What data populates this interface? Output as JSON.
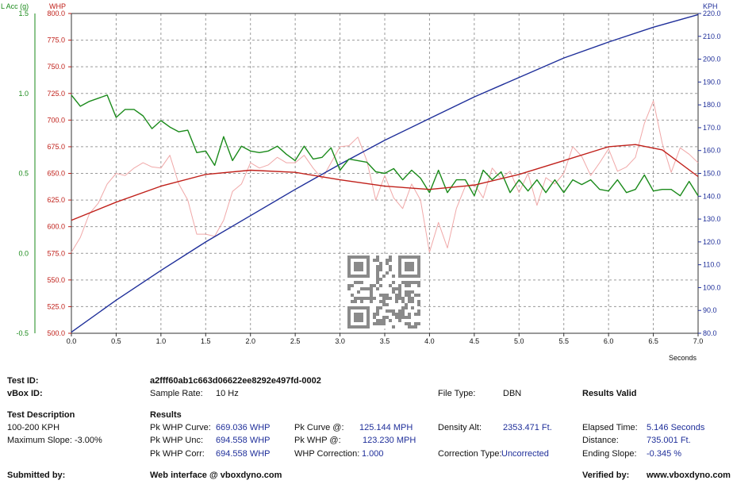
{
  "chart_data": {
    "type": "line",
    "xlabel": "Seconds",
    "x_ticks": [
      0.0,
      0.5,
      1.0,
      1.5,
      2.0,
      2.5,
      3.0,
      3.5,
      4.0,
      4.5,
      5.0,
      5.5,
      6.0,
      6.5,
      7.0
    ],
    "xlim": [
      0,
      7
    ],
    "axes": {
      "acc": {
        "label": "L Acc (g)",
        "ticks": [
          -0.5,
          0.0,
          0.5,
          1.0,
          1.5
        ],
        "lim": [
          -0.5,
          1.5
        ],
        "color": "#1a8a1a"
      },
      "whp": {
        "label": "WHP",
        "ticks": [
          500.0,
          525.0,
          550.0,
          575.0,
          600.0,
          625.0,
          650.0,
          675.0,
          700.0,
          725.0,
          750.0,
          775.0,
          800.0
        ],
        "lim": [
          500,
          800
        ],
        "color": "#c0201a"
      },
      "kph": {
        "label": "KPH",
        "ticks": [
          80.0,
          90.0,
          100.0,
          110.0,
          120.0,
          130.0,
          140.0,
          150.0,
          160.0,
          170.0,
          180.0,
          190.0,
          200.0,
          210.0,
          220.0
        ],
        "lim": [
          80,
          220
        ],
        "color": "#1f2f9a"
      }
    },
    "series": [
      {
        "axis": "kph",
        "color": "#1f2f9a",
        "x": [
          0,
          0.5,
          1.0,
          1.5,
          2.0,
          2.5,
          3.0,
          3.5,
          4.0,
          4.5,
          5.0,
          5.5,
          6.0,
          6.5,
          7.0
        ],
        "values": [
          80.5,
          94.5,
          107.5,
          120.0,
          131.5,
          143.0,
          154.0,
          164.5,
          174.0,
          183.5,
          192.0,
          200.5,
          207.5,
          214.0,
          219.5
        ]
      },
      {
        "axis": "whp",
        "color": "#c0201a",
        "x": [
          0,
          0.5,
          1.0,
          1.5,
          2.0,
          2.5,
          3.0,
          3.5,
          4.0,
          4.5,
          5.0,
          5.5,
          6.0,
          6.3,
          6.6,
          7.0
        ],
        "values": [
          606,
          623,
          638,
          649,
          653,
          651,
          644,
          638,
          635,
          639,
          649,
          662,
          675,
          677,
          672,
          647
        ]
      },
      {
        "axis": "whp",
        "color": "#f0a8a8",
        "x": [
          0,
          0.1,
          0.2,
          0.3,
          0.4,
          0.5,
          0.6,
          0.7,
          0.8,
          0.9,
          1.0,
          1.1,
          1.2,
          1.3,
          1.4,
          1.5,
          1.6,
          1.7,
          1.8,
          1.9,
          2.0,
          2.1,
          2.2,
          2.3,
          2.4,
          2.5,
          2.6,
          2.7,
          2.8,
          2.9,
          3.0,
          3.1,
          3.2,
          3.3,
          3.4,
          3.5,
          3.6,
          3.7,
          3.8,
          3.9,
          4.0,
          4.1,
          4.2,
          4.3,
          4.4,
          4.5,
          4.6,
          4.7,
          4.8,
          4.9,
          5.0,
          5.1,
          5.2,
          5.3,
          5.4,
          5.5,
          5.6,
          5.7,
          5.8,
          5.9,
          6.0,
          6.1,
          6.2,
          6.3,
          6.4,
          6.5,
          6.6,
          6.7,
          6.8,
          6.9,
          7.0
        ],
        "values": [
          576,
          590,
          612,
          622,
          640,
          650,
          648,
          655,
          660,
          656,
          655,
          667,
          640,
          625,
          593,
          593,
          591,
          606,
          633,
          640,
          660,
          655,
          658,
          665,
          660,
          660,
          667,
          655,
          645,
          660,
          675,
          676,
          684,
          662,
          625,
          648,
          627,
          617,
          640,
          625,
          576,
          604,
          580,
          617,
          638,
          640,
          627,
          655,
          645,
          652,
          632,
          650,
          620,
          646,
          640,
          650,
          675,
          666,
          648,
          660,
          673,
          652,
          656,
          665,
          697,
          718,
          678,
          651,
          674,
          668,
          660
        ]
      },
      {
        "axis": "acc",
        "color": "#1a8a1a",
        "x": [
          0,
          0.1,
          0.2,
          0.3,
          0.4,
          0.5,
          0.6,
          0.7,
          0.8,
          0.9,
          1.0,
          1.1,
          1.2,
          1.3,
          1.4,
          1.5,
          1.6,
          1.7,
          1.8,
          1.9,
          2.0,
          2.1,
          2.2,
          2.3,
          2.4,
          2.5,
          2.6,
          2.7,
          2.8,
          2.9,
          3.0,
          3.1,
          3.2,
          3.3,
          3.4,
          3.5,
          3.6,
          3.7,
          3.8,
          3.9,
          4.0,
          4.1,
          4.2,
          4.3,
          4.4,
          4.5,
          4.6,
          4.7,
          4.8,
          4.9,
          5.0,
          5.1,
          5.2,
          5.3,
          5.4,
          5.5,
          5.6,
          5.7,
          5.8,
          5.9,
          6.0,
          6.1,
          6.2,
          6.3,
          6.4,
          6.5,
          6.6,
          6.7,
          6.8,
          6.9,
          7.0
        ],
        "values": [
          0.99,
          0.92,
          0.95,
          0.97,
          0.99,
          0.85,
          0.9,
          0.9,
          0.86,
          0.78,
          0.83,
          0.79,
          0.76,
          0.77,
          0.63,
          0.64,
          0.55,
          0.73,
          0.58,
          0.67,
          0.64,
          0.63,
          0.64,
          0.67,
          0.62,
          0.58,
          0.67,
          0.59,
          0.6,
          0.66,
          0.52,
          0.59,
          0.58,
          0.57,
          0.51,
          0.5,
          0.53,
          0.46,
          0.52,
          0.47,
          0.38,
          0.52,
          0.38,
          0.46,
          0.46,
          0.36,
          0.52,
          0.46,
          0.51,
          0.38,
          0.46,
          0.39,
          0.46,
          0.38,
          0.46,
          0.38,
          0.46,
          0.43,
          0.46,
          0.4,
          0.39,
          0.46,
          0.38,
          0.4,
          0.49,
          0.39,
          0.4,
          0.4,
          0.36,
          0.45,
          0.36
        ]
      }
    ]
  },
  "qr_label": "QR code",
  "info": {
    "test_id_label": "Test ID:",
    "test_id": "a2fff60ab1c663d06622ee8292e497fd-0002",
    "vbox_id_label": "vBox ID:",
    "sample_rate_label": "Sample Rate:",
    "sample_rate": "10 Hz",
    "file_type_label": "File Type:",
    "file_type": "DBN",
    "results_valid": "Results Valid",
    "test_desc_label": "Test Description",
    "test_desc": "100-200 KPH",
    "max_slope": "Maximum Slope: -3.00%",
    "results_label": "Results",
    "pk_whp_curve_label": "Pk WHP Curve:",
    "pk_whp_curve": "669.036 WHP",
    "pk_whp_unc_label": "Pk WHP Unc:",
    "pk_whp_unc": "694.558 WHP",
    "pk_whp_corr_label": "Pk WHP Corr:",
    "pk_whp_corr": "694.558 WHP",
    "pk_curve_at_label": "Pk Curve @:",
    "pk_curve_at": "125.144 MPH",
    "pk_whp_at_label": "Pk WHP @:",
    "pk_whp_at": "123.230 MPH",
    "whp_correction_label": "WHP Correction:",
    "whp_correction": "1.000",
    "density_alt_label": "Density Alt:",
    "density_alt": "2353.471 Ft.",
    "correction_type_label": "Correction Type:",
    "correction_type": "Uncorrected",
    "elapsed_label": "Elapsed Time:",
    "elapsed": "5.146 Seconds",
    "distance_label": "Distance:",
    "distance": "735.001 Ft.",
    "ending_slope_label": "Ending Slope:",
    "ending_slope": "-0.345 %",
    "submitted_label": "Submitted by:",
    "web_interface": "Web interface @ vboxdyno.com",
    "verified_label": "Verified by:",
    "verified_site": "www.vboxdyno.com"
  }
}
